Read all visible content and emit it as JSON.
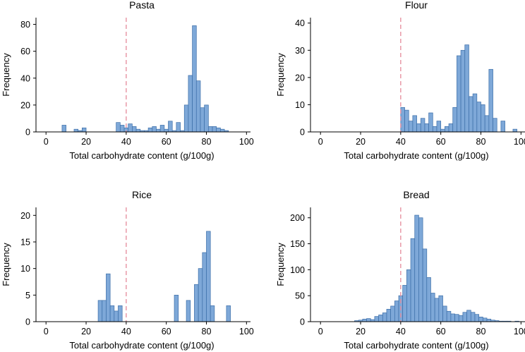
{
  "chart_data": [
    {
      "type": "bar",
      "title": "Pasta",
      "xlabel": "Total carbohydrate content (g/100g)",
      "ylabel": "Frequency",
      "xlim": [
        -5,
        102
      ],
      "ylim": [
        0,
        85
      ],
      "xticks": [
        0,
        20,
        40,
        60,
        80,
        100
      ],
      "yticks": [
        0,
        20,
        40,
        60,
        80
      ],
      "bin_width": 2,
      "reference_line_x": 40,
      "bins": [
        {
          "x": 9,
          "count": 5
        },
        {
          "x": 15,
          "count": 2
        },
        {
          "x": 17,
          "count": 1
        },
        {
          "x": 19,
          "count": 3
        },
        {
          "x": 36,
          "count": 7
        },
        {
          "x": 38,
          "count": 5
        },
        {
          "x": 40,
          "count": 3
        },
        {
          "x": 42,
          "count": 6
        },
        {
          "x": 44,
          "count": 4
        },
        {
          "x": 46,
          "count": 2
        },
        {
          "x": 48,
          "count": 1
        },
        {
          "x": 50,
          "count": 1
        },
        {
          "x": 52,
          "count": 3
        },
        {
          "x": 54,
          "count": 4
        },
        {
          "x": 56,
          "count": 2
        },
        {
          "x": 58,
          "count": 5
        },
        {
          "x": 60,
          "count": 2
        },
        {
          "x": 62,
          "count": 8
        },
        {
          "x": 64,
          "count": 1
        },
        {
          "x": 66,
          "count": 7
        },
        {
          "x": 68,
          "count": 1
        },
        {
          "x": 70,
          "count": 20
        },
        {
          "x": 72,
          "count": 42
        },
        {
          "x": 74,
          "count": 79
        },
        {
          "x": 76,
          "count": 38
        },
        {
          "x": 78,
          "count": 18
        },
        {
          "x": 80,
          "count": 20
        },
        {
          "x": 82,
          "count": 4
        },
        {
          "x": 84,
          "count": 4
        },
        {
          "x": 86,
          "count": 3
        },
        {
          "x": 88,
          "count": 2
        },
        {
          "x": 90,
          "count": 1
        }
      ]
    },
    {
      "type": "bar",
      "title": "Flour",
      "xlabel": "Total carbohydrate content (g/100g)",
      "ylabel": "Frequency",
      "xlim": [
        -5,
        102
      ],
      "ylim": [
        0,
        42
      ],
      "xticks": [
        0,
        20,
        40,
        60,
        80,
        100
      ],
      "yticks": [
        0,
        10,
        20,
        30,
        40
      ],
      "bin_width": 2,
      "reference_line_x": 40,
      "bins": [
        {
          "x": 41,
          "count": 9
        },
        {
          "x": 43,
          "count": 8
        },
        {
          "x": 45,
          "count": 4
        },
        {
          "x": 47,
          "count": 6
        },
        {
          "x": 49,
          "count": 3
        },
        {
          "x": 51,
          "count": 5
        },
        {
          "x": 53,
          "count": 3
        },
        {
          "x": 55,
          "count": 7
        },
        {
          "x": 57,
          "count": 2
        },
        {
          "x": 59,
          "count": 4
        },
        {
          "x": 61,
          "count": 1
        },
        {
          "x": 63,
          "count": 2
        },
        {
          "x": 65,
          "count": 3
        },
        {
          "x": 67,
          "count": 9
        },
        {
          "x": 69,
          "count": 28
        },
        {
          "x": 71,
          "count": 30
        },
        {
          "x": 73,
          "count": 32
        },
        {
          "x": 75,
          "count": 13
        },
        {
          "x": 77,
          "count": 14
        },
        {
          "x": 79,
          "count": 11
        },
        {
          "x": 81,
          "count": 10
        },
        {
          "x": 83,
          "count": 6
        },
        {
          "x": 85,
          "count": 23
        },
        {
          "x": 87,
          "count": 5
        },
        {
          "x": 89,
          "count": 0
        },
        {
          "x": 91,
          "count": 4
        },
        {
          "x": 93,
          "count": 0
        },
        {
          "x": 95,
          "count": 0
        },
        {
          "x": 97,
          "count": 1
        }
      ]
    },
    {
      "type": "bar",
      "title": "Rice",
      "xlabel": "Total carbohydrate content (g/100g)",
      "ylabel": "Frequency",
      "xlim": [
        -5,
        102
      ],
      "ylim": [
        0,
        21.5
      ],
      "xticks": [
        0,
        20,
        40,
        60,
        80,
        100
      ],
      "yticks": [
        0,
        5,
        10,
        15,
        20
      ],
      "bin_width": 2,
      "reference_line_x": 40,
      "bins": [
        {
          "x": 27,
          "count": 4
        },
        {
          "x": 29,
          "count": 4
        },
        {
          "x": 31,
          "count": 9
        },
        {
          "x": 33,
          "count": 3
        },
        {
          "x": 35,
          "count": 2
        },
        {
          "x": 37,
          "count": 3
        },
        {
          "x": 65,
          "count": 5
        },
        {
          "x": 71,
          "count": 4
        },
        {
          "x": 75,
          "count": 7
        },
        {
          "x": 77,
          "count": 10
        },
        {
          "x": 79,
          "count": 13
        },
        {
          "x": 81,
          "count": 17
        },
        {
          "x": 83,
          "count": 3
        },
        {
          "x": 91,
          "count": 3
        }
      ]
    },
    {
      "type": "bar",
      "title": "Bread",
      "xlabel": "Total carbohydrate content (g/100g)",
      "ylabel": "Frequency",
      "xlim": [
        -5,
        102
      ],
      "ylim": [
        0,
        220
      ],
      "xticks": [
        0,
        20,
        40,
        60,
        80,
        100
      ],
      "yticks": [
        0,
        50,
        100,
        150,
        200
      ],
      "bin_width": 2,
      "reference_line_x": 40,
      "bins": [
        {
          "x": 18,
          "count": 2
        },
        {
          "x": 20,
          "count": 3
        },
        {
          "x": 22,
          "count": 5
        },
        {
          "x": 24,
          "count": 6
        },
        {
          "x": 26,
          "count": 4
        },
        {
          "x": 28,
          "count": 10
        },
        {
          "x": 30,
          "count": 13
        },
        {
          "x": 32,
          "count": 17
        },
        {
          "x": 34,
          "count": 24
        },
        {
          "x": 36,
          "count": 30
        },
        {
          "x": 38,
          "count": 40
        },
        {
          "x": 40,
          "count": 50
        },
        {
          "x": 42,
          "count": 70
        },
        {
          "x": 44,
          "count": 100
        },
        {
          "x": 46,
          "count": 160
        },
        {
          "x": 48,
          "count": 205
        },
        {
          "x": 50,
          "count": 200
        },
        {
          "x": 52,
          "count": 140
        },
        {
          "x": 54,
          "count": 85
        },
        {
          "x": 56,
          "count": 55
        },
        {
          "x": 58,
          "count": 45
        },
        {
          "x": 60,
          "count": 50
        },
        {
          "x": 62,
          "count": 30
        },
        {
          "x": 64,
          "count": 20
        },
        {
          "x": 66,
          "count": 15
        },
        {
          "x": 68,
          "count": 14
        },
        {
          "x": 70,
          "count": 12
        },
        {
          "x": 72,
          "count": 18
        },
        {
          "x": 74,
          "count": 22
        },
        {
          "x": 76,
          "count": 18
        },
        {
          "x": 78,
          "count": 14
        },
        {
          "x": 80,
          "count": 9
        },
        {
          "x": 82,
          "count": 7
        },
        {
          "x": 84,
          "count": 5
        },
        {
          "x": 86,
          "count": 3
        },
        {
          "x": 88,
          "count": 2
        },
        {
          "x": 90,
          "count": 1
        },
        {
          "x": 92,
          "count": 1
        },
        {
          "x": 94,
          "count": 1
        },
        {
          "x": 96,
          "count": 0
        },
        {
          "x": 98,
          "count": 1
        }
      ]
    }
  ]
}
